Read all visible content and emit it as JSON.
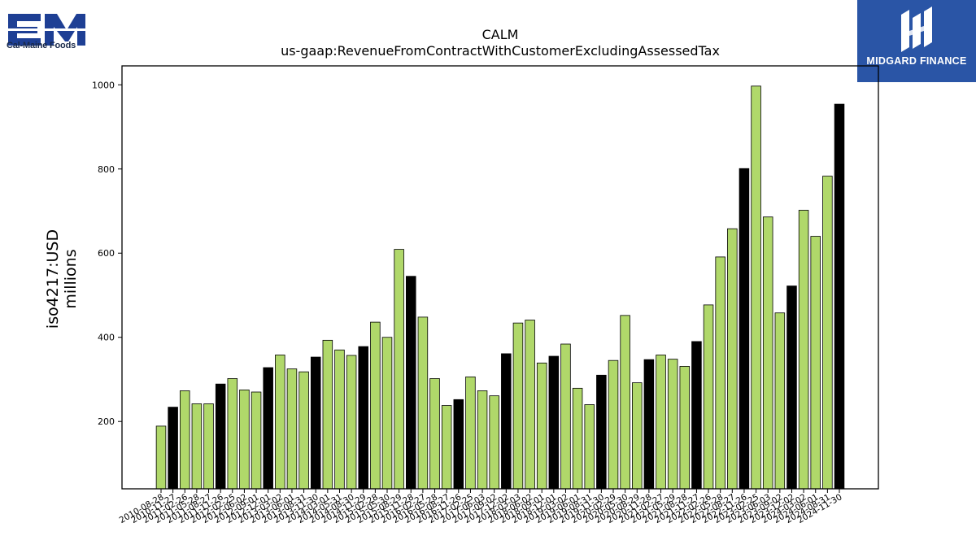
{
  "brand": {
    "company_caption": "Cal-Maine Foods",
    "company_logo_text": "CM",
    "partner_name": "MIDGARD FINANCE"
  },
  "colors": {
    "bar_fill": "#b0d86a",
    "bar_highlight": "#000000",
    "bar_edge": "#000000",
    "brand_blue": "#1e3f94",
    "badge_blue": "#2a55a6"
  },
  "chart_data": {
    "type": "bar",
    "title": "CALM",
    "subtitle": "us-gaap:RevenueFromContractWithCustomerExcludingAssessedTax",
    "ylabel": [
      "iso4217:USD",
      "millions"
    ],
    "xlabel": "",
    "ylim": [
      40,
      1045
    ],
    "yticks": [
      200,
      400,
      600,
      800,
      1000
    ],
    "grid": false,
    "legend": "none",
    "categories": [
      "2010-08-28",
      "2010-11-27",
      "2011-02-26",
      "2011-05-28",
      "2011-08-27",
      "2011-11-26",
      "2012-02-25",
      "2012-06-02",
      "2012-09-01",
      "2012-12-01",
      "2013-03-02",
      "2013-06-01",
      "2013-08-31",
      "2013-11-30",
      "2014-03-01",
      "2014-05-31",
      "2014-08-30",
      "2014-11-29",
      "2015-02-28",
      "2015-05-30",
      "2015-08-29",
      "2015-11-28",
      "2016-02-27",
      "2016-05-28",
      "2016-08-27",
      "2016-11-26",
      "2017-02-25",
      "2017-06-03",
      "2017-09-02",
      "2017-12-02",
      "2018-03-03",
      "2018-06-02",
      "2018-09-01",
      "2018-12-01",
      "2019-03-02",
      "2019-06-01",
      "2019-08-31",
      "2019-11-30",
      "2020-02-29",
      "2020-05-30",
      "2020-08-29",
      "2020-11-28",
      "2021-02-27",
      "2021-05-29",
      "2021-08-28",
      "2021-11-27",
      "2022-02-26",
      "2022-05-28",
      "2022-08-27",
      "2022-11-26",
      "2023-02-25",
      "2023-06-03",
      "2023-09-02",
      "2023-12-02",
      "2024-03-02",
      "2024-06-01",
      "2024-08-31",
      "2024-11-30"
    ],
    "values": [
      189,
      234,
      273,
      242,
      242,
      289,
      302,
      275,
      270,
      328,
      358,
      325,
      318,
      353,
      393,
      370,
      357,
      378,
      436,
      400,
      609,
      545,
      448,
      302,
      238,
      252,
      306,
      273,
      261,
      361,
      434,
      441,
      339,
      355,
      384,
      279,
      240,
      310,
      345,
      452,
      292,
      347,
      358,
      348,
      331,
      390,
      477,
      591,
      658,
      801,
      997,
      686,
      458,
      522,
      702,
      640,
      783,
      954
    ],
    "highlighted": [
      1,
      5,
      9,
      13,
      17,
      21,
      25,
      29,
      33,
      37,
      41,
      45,
      49,
      53,
      57
    ]
  }
}
